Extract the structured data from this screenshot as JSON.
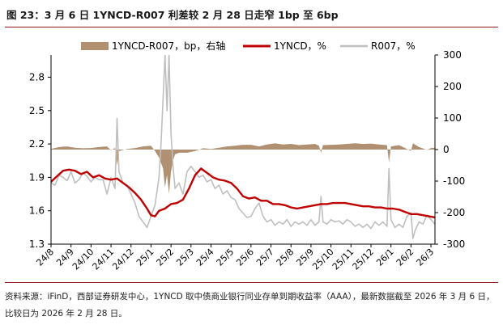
{
  "title": "图 23：3 月 6 日 1YNCD-R007 利差较 2 月 28 日走窄 1bp 至 6bp",
  "source": "资料来源：iFinD，西部证券研发中心，1YNCD 取中债商业银行同业存单到期收益率（AAA），最新数据截至 2026 年 3 月 6 日，比较日为 2026 年 2 月 28 日。",
  "chart_data": {
    "type": "line",
    "legend": [
      {
        "name": "1YNCD-R007，bp，右轴",
        "kind": "area",
        "color": "#b09070"
      },
      {
        "name": "1YNCD，%",
        "kind": "line",
        "color": "#c00000"
      },
      {
        "name": "R007，%",
        "kind": "line",
        "color": "#bfbfbf"
      }
    ],
    "x_ticks": [
      "24/8",
      "24/9",
      "24/10",
      "24/11",
      "24/12",
      "25/1",
      "25/2",
      "25/3",
      "25/4",
      "25/5",
      "25/6",
      "25/7",
      "25/8",
      "25/9",
      "25/10",
      "25/11",
      "25/12",
      "26/1",
      "26/2",
      "26/3"
    ],
    "left_axis": {
      "min": 1.3,
      "max": 3.0,
      "ticks": [
        "1.3",
        "1.6",
        "1.9",
        "2.2",
        "2.5",
        "2.8"
      ]
    },
    "right_axis": {
      "min": -300,
      "max": 300,
      "ticks": [
        "-300",
        "-200",
        "-100",
        "0",
        "100",
        "200",
        "300"
      ]
    },
    "x_range": [
      0,
      19.2
    ],
    "series": [
      {
        "name": "1YNCD，%",
        "axis": "left",
        "color": "#c00000",
        "points": [
          [
            0,
            1.86
          ],
          [
            0.3,
            1.91
          ],
          [
            0.6,
            1.96
          ],
          [
            0.9,
            1.97
          ],
          [
            1.2,
            1.96
          ],
          [
            1.5,
            1.93
          ],
          [
            1.8,
            1.95
          ],
          [
            2.1,
            1.9
          ],
          [
            2.4,
            1.92
          ],
          [
            2.7,
            1.89
          ],
          [
            3.0,
            1.88
          ],
          [
            3.3,
            1.89
          ],
          [
            3.6,
            1.85
          ],
          [
            3.9,
            1.81
          ],
          [
            4.2,
            1.76
          ],
          [
            4.5,
            1.7
          ],
          [
            4.8,
            1.62
          ],
          [
            5.0,
            1.56
          ],
          [
            5.2,
            1.55
          ],
          [
            5.4,
            1.6
          ],
          [
            5.7,
            1.62
          ],
          [
            6.0,
            1.66
          ],
          [
            6.3,
            1.67
          ],
          [
            6.6,
            1.7
          ],
          [
            6.9,
            1.8
          ],
          [
            7.2,
            1.92
          ],
          [
            7.5,
            1.98
          ],
          [
            7.8,
            1.94
          ],
          [
            8.1,
            1.9
          ],
          [
            8.4,
            1.88
          ],
          [
            8.7,
            1.87
          ],
          [
            9.0,
            1.85
          ],
          [
            9.3,
            1.8
          ],
          [
            9.6,
            1.73
          ],
          [
            9.9,
            1.71
          ],
          [
            10.2,
            1.72
          ],
          [
            10.5,
            1.69
          ],
          [
            10.8,
            1.69
          ],
          [
            11.1,
            1.66
          ],
          [
            11.4,
            1.66
          ],
          [
            11.7,
            1.65
          ],
          [
            12.0,
            1.63
          ],
          [
            12.3,
            1.62
          ],
          [
            12.6,
            1.63
          ],
          [
            12.9,
            1.64
          ],
          [
            13.2,
            1.65
          ],
          [
            13.5,
            1.66
          ],
          [
            13.8,
            1.66
          ],
          [
            14.1,
            1.67
          ],
          [
            14.4,
            1.67
          ],
          [
            14.7,
            1.67
          ],
          [
            15.0,
            1.66
          ],
          [
            15.3,
            1.65
          ],
          [
            15.6,
            1.64
          ],
          [
            15.9,
            1.64
          ],
          [
            16.2,
            1.63
          ],
          [
            16.5,
            1.63
          ],
          [
            16.8,
            1.62
          ],
          [
            17.1,
            1.62
          ],
          [
            17.4,
            1.61
          ],
          [
            17.7,
            1.59
          ],
          [
            18.0,
            1.57
          ],
          [
            18.3,
            1.57
          ],
          [
            18.6,
            1.56
          ],
          [
            18.9,
            1.55
          ],
          [
            19.2,
            1.54
          ]
        ]
      },
      {
        "name": "R007，%",
        "axis": "left",
        "color": "#bfbfbf",
        "points": [
          [
            0,
            1.85
          ],
          [
            0.2,
            1.83
          ],
          [
            0.4,
            1.92
          ],
          [
            0.6,
            1.9
          ],
          [
            0.8,
            1.87
          ],
          [
            1.0,
            1.95
          ],
          [
            1.2,
            1.85
          ],
          [
            1.4,
            1.88
          ],
          [
            1.6,
            1.94
          ],
          [
            1.8,
            1.91
          ],
          [
            2.0,
            1.86
          ],
          [
            2.2,
            1.9
          ],
          [
            2.4,
            1.88
          ],
          [
            2.6,
            1.88
          ],
          [
            2.8,
            1.75
          ],
          [
            3.0,
            1.9
          ],
          [
            3.2,
            1.8
          ],
          [
            3.3,
            2.43
          ],
          [
            3.4,
            1.95
          ],
          [
            3.6,
            1.85
          ],
          [
            3.8,
            1.83
          ],
          [
            4.0,
            1.75
          ],
          [
            4.2,
            1.67
          ],
          [
            4.4,
            1.55
          ],
          [
            4.6,
            1.5
          ],
          [
            4.8,
            1.45
          ],
          [
            5.0,
            1.55
          ],
          [
            5.2,
            1.65
          ],
          [
            5.4,
            1.9
          ],
          [
            5.5,
            2.2
          ],
          [
            5.6,
            2.6
          ],
          [
            5.7,
            3.0
          ],
          [
            5.8,
            2.5
          ],
          [
            5.9,
            3.0
          ],
          [
            6.0,
            2.3
          ],
          [
            6.1,
            2.0
          ],
          [
            6.2,
            1.8
          ],
          [
            6.4,
            1.85
          ],
          [
            6.6,
            1.75
          ],
          [
            6.8,
            1.95
          ],
          [
            7.0,
            2.0
          ],
          [
            7.2,
            1.95
          ],
          [
            7.4,
            1.9
          ],
          [
            7.6,
            1.92
          ],
          [
            7.8,
            1.86
          ],
          [
            8.0,
            1.88
          ],
          [
            8.2,
            1.8
          ],
          [
            8.4,
            1.83
          ],
          [
            8.6,
            1.75
          ],
          [
            8.8,
            1.78
          ],
          [
            9.0,
            1.72
          ],
          [
            9.2,
            1.7
          ],
          [
            9.4,
            1.62
          ],
          [
            9.6,
            1.58
          ],
          [
            9.8,
            1.54
          ],
          [
            10.0,
            1.55
          ],
          [
            10.2,
            1.62
          ],
          [
            10.4,
            1.67
          ],
          [
            10.6,
            1.55
          ],
          [
            10.8,
            1.5
          ],
          [
            11.0,
            1.52
          ],
          [
            11.2,
            1.47
          ],
          [
            11.4,
            1.5
          ],
          [
            11.6,
            1.48
          ],
          [
            11.8,
            1.52
          ],
          [
            12.0,
            1.46
          ],
          [
            12.2,
            1.5
          ],
          [
            12.4,
            1.48
          ],
          [
            12.6,
            1.5
          ],
          [
            12.8,
            1.47
          ],
          [
            13.0,
            1.52
          ],
          [
            13.2,
            1.47
          ],
          [
            13.4,
            1.5
          ],
          [
            13.5,
            1.73
          ],
          [
            13.6,
            1.5
          ],
          [
            13.8,
            1.48
          ],
          [
            14.0,
            1.52
          ],
          [
            14.2,
            1.5
          ],
          [
            14.4,
            1.51
          ],
          [
            14.6,
            1.48
          ],
          [
            14.8,
            1.52
          ],
          [
            15.0,
            1.5
          ],
          [
            15.2,
            1.46
          ],
          [
            15.4,
            1.48
          ],
          [
            15.6,
            1.45
          ],
          [
            15.8,
            1.48
          ],
          [
            16.0,
            1.44
          ],
          [
            16.2,
            1.5
          ],
          [
            16.4,
            1.47
          ],
          [
            16.6,
            1.5
          ],
          [
            16.8,
            1.46
          ],
          [
            16.9,
            1.98
          ],
          [
            17.0,
            1.52
          ],
          [
            17.2,
            1.45
          ],
          [
            17.4,
            1.48
          ],
          [
            17.6,
            1.45
          ],
          [
            17.8,
            1.55
          ],
          [
            18.0,
            1.58
          ],
          [
            18.1,
            1.35
          ],
          [
            18.2,
            1.42
          ],
          [
            18.4,
            1.5
          ],
          [
            18.6,
            1.48
          ],
          [
            18.8,
            1.56
          ],
          [
            19.0,
            1.52
          ],
          [
            19.2,
            1.48
          ]
        ]
      },
      {
        "name": "1YNCD-R007，bp，右轴",
        "axis": "right",
        "color": "#b09070",
        "points": [
          [
            0,
            2
          ],
          [
            0.4,
            8
          ],
          [
            0.8,
            10
          ],
          [
            1.2,
            6
          ],
          [
            1.6,
            4
          ],
          [
            2.0,
            5
          ],
          [
            2.4,
            8
          ],
          [
            2.8,
            10
          ],
          [
            3.0,
            -2
          ],
          [
            3.2,
            5
          ],
          [
            3.3,
            -50
          ],
          [
            3.4,
            -5
          ],
          [
            3.8,
            2
          ],
          [
            4.2,
            5
          ],
          [
            4.6,
            10
          ],
          [
            5.0,
            12
          ],
          [
            5.2,
            -5
          ],
          [
            5.4,
            -25
          ],
          [
            5.6,
            -60
          ],
          [
            5.7,
            -120
          ],
          [
            5.8,
            -80
          ],
          [
            5.9,
            -140
          ],
          [
            6.0,
            -70
          ],
          [
            6.1,
            -35
          ],
          [
            6.2,
            -15
          ],
          [
            6.4,
            -10
          ],
          [
            6.8,
            -10
          ],
          [
            7.2,
            -5
          ],
          [
            7.6,
            4
          ],
          [
            8.0,
            2
          ],
          [
            8.4,
            6
          ],
          [
            8.8,
            10
          ],
          [
            9.2,
            12
          ],
          [
            9.6,
            15
          ],
          [
            10.0,
            15
          ],
          [
            10.4,
            10
          ],
          [
            10.8,
            16
          ],
          [
            11.2,
            20
          ],
          [
            11.6,
            16
          ],
          [
            12.0,
            18
          ],
          [
            12.4,
            14
          ],
          [
            12.8,
            16
          ],
          [
            13.2,
            18
          ],
          [
            13.4,
            12
          ],
          [
            13.5,
            -10
          ],
          [
            13.6,
            14
          ],
          [
            14.0,
            15
          ],
          [
            14.4,
            16
          ],
          [
            14.8,
            18
          ],
          [
            15.2,
            20
          ],
          [
            15.6,
            18
          ],
          [
            16.0,
            19
          ],
          [
            16.4,
            16
          ],
          [
            16.8,
            14
          ],
          [
            16.9,
            -40
          ],
          [
            17.0,
            10
          ],
          [
            17.4,
            14
          ],
          [
            17.8,
            2
          ],
          [
            18.0,
            -4
          ],
          [
            18.1,
            20
          ],
          [
            18.4,
            8
          ],
          [
            18.8,
            -1
          ],
          [
            19.0,
            5
          ],
          [
            19.2,
            6
          ]
        ]
      }
    ]
  }
}
